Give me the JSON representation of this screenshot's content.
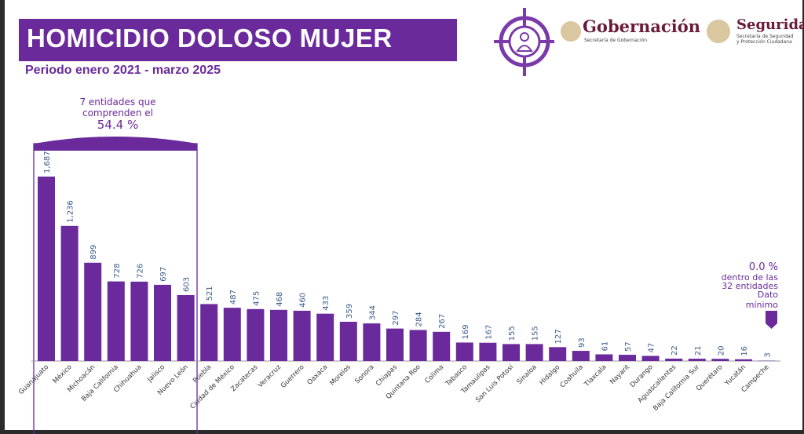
{
  "header": {
    "title": "HOMICIDIO DOLOSO MUJER",
    "subtitle": "Periodo enero 2021 - marzo 2025"
  },
  "logos": {
    "gob_name": "Gobernación",
    "gob_sub": "Secretaría de Gobernación",
    "seg_name": "Seguridad",
    "seg_sub1": "Secretaría de Seguridad",
    "seg_sub2": "y Protección Ciudadana"
  },
  "annotations": {
    "top_line1": "7 entidades que",
    "top_line2": "comprenden el",
    "top_pct": "54.4 %",
    "min_pct": "0.0 %",
    "min_line1": "dentro de las",
    "min_line2": "32 entidades",
    "min_line3": "Dato",
    "min_line4": "mínimo"
  },
  "colors": {
    "bar": "#6a2a9c",
    "label": "#3a5a8a"
  },
  "chart_data": {
    "type": "bar",
    "title": "HOMICIDIO DOLOSO MUJER",
    "subtitle": "Periodo enero 2021 - marzo 2025",
    "xlabel": "",
    "ylabel": "",
    "ylim": [
      0,
      1687
    ],
    "categories": [
      "Guanajuato",
      "México",
      "Michoacán",
      "Baja California",
      "Chihuahua",
      "Jalisco",
      "Nuevo León",
      "Puebla",
      "Ciudad de México",
      "Zacatecas",
      "Veracruz",
      "Guerrero",
      "Oaxaca",
      "Morelos",
      "Sonora",
      "Chiapas",
      "Quintana Roo",
      "Colima",
      "Tabasco",
      "Tamaulipas",
      "San Luis Potosí",
      "Sinaloa",
      "Hidalgo",
      "Coahuila",
      "Tlaxcala",
      "Nayarit",
      "Durango",
      "Aguascalientes",
      "Baja California Sur",
      "Querétaro",
      "Yucatán",
      "Campeche"
    ],
    "values": [
      1687,
      1236,
      899,
      728,
      726,
      697,
      603,
      521,
      487,
      475,
      468,
      460,
      433,
      359,
      344,
      297,
      284,
      267,
      169,
      167,
      155,
      155,
      127,
      93,
      61,
      57,
      47,
      22,
      21,
      20,
      16,
      3
    ],
    "value_labels": [
      "1,687",
      "1,236",
      "899",
      "728",
      "726",
      "697",
      "603",
      "521",
      "487",
      "475",
      "468",
      "460",
      "433",
      "359",
      "344",
      "297",
      "284",
      "267",
      "169",
      "167",
      "155",
      "155",
      "127",
      "93",
      "61",
      "57",
      "47",
      "22",
      "21",
      "20",
      "16",
      "3"
    ]
  }
}
